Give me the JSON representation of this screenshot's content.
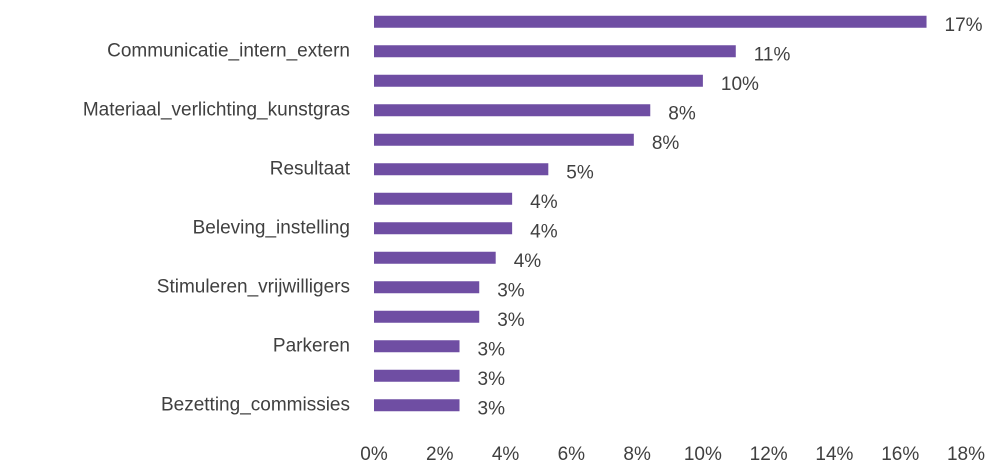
{
  "chart_data": {
    "type": "barh",
    "categories": [
      null,
      "Communicatie_intern_extern",
      null,
      "Materiaal_verlichting_kunstgras",
      null,
      "Resultaat",
      null,
      "Beleving_instelling",
      null,
      "Stimuleren_vrijwilligers",
      null,
      "Parkeren",
      null,
      "Bezetting_commissies"
    ],
    "values": [
      16.8,
      11.0,
      10.0,
      8.4,
      7.9,
      5.3,
      4.2,
      4.2,
      3.7,
      3.2,
      3.2,
      2.6,
      2.6,
      2.6
    ],
    "value_labels": [
      "17%",
      "11%",
      "10%",
      "8%",
      "8%",
      "5%",
      "4%",
      "4%",
      "4%",
      "3%",
      "3%",
      "3%",
      "3%",
      "3%"
    ],
    "color": "#6f4ea3",
    "xlim": [
      0,
      18
    ],
    "xticks": [
      {
        "value": 0,
        "label": "0%"
      },
      {
        "value": 2,
        "label": "2%"
      },
      {
        "value": 4,
        "label": "4%"
      },
      {
        "value": 6,
        "label": "6%"
      },
      {
        "value": 8,
        "label": "8%"
      },
      {
        "value": 10,
        "label": "10%"
      },
      {
        "value": 12,
        "label": "12%"
      },
      {
        "value": 14,
        "label": "14%"
      },
      {
        "value": 16,
        "label": "16%"
      },
      {
        "value": 18,
        "label": "18%"
      }
    ],
    "grid": false
  }
}
